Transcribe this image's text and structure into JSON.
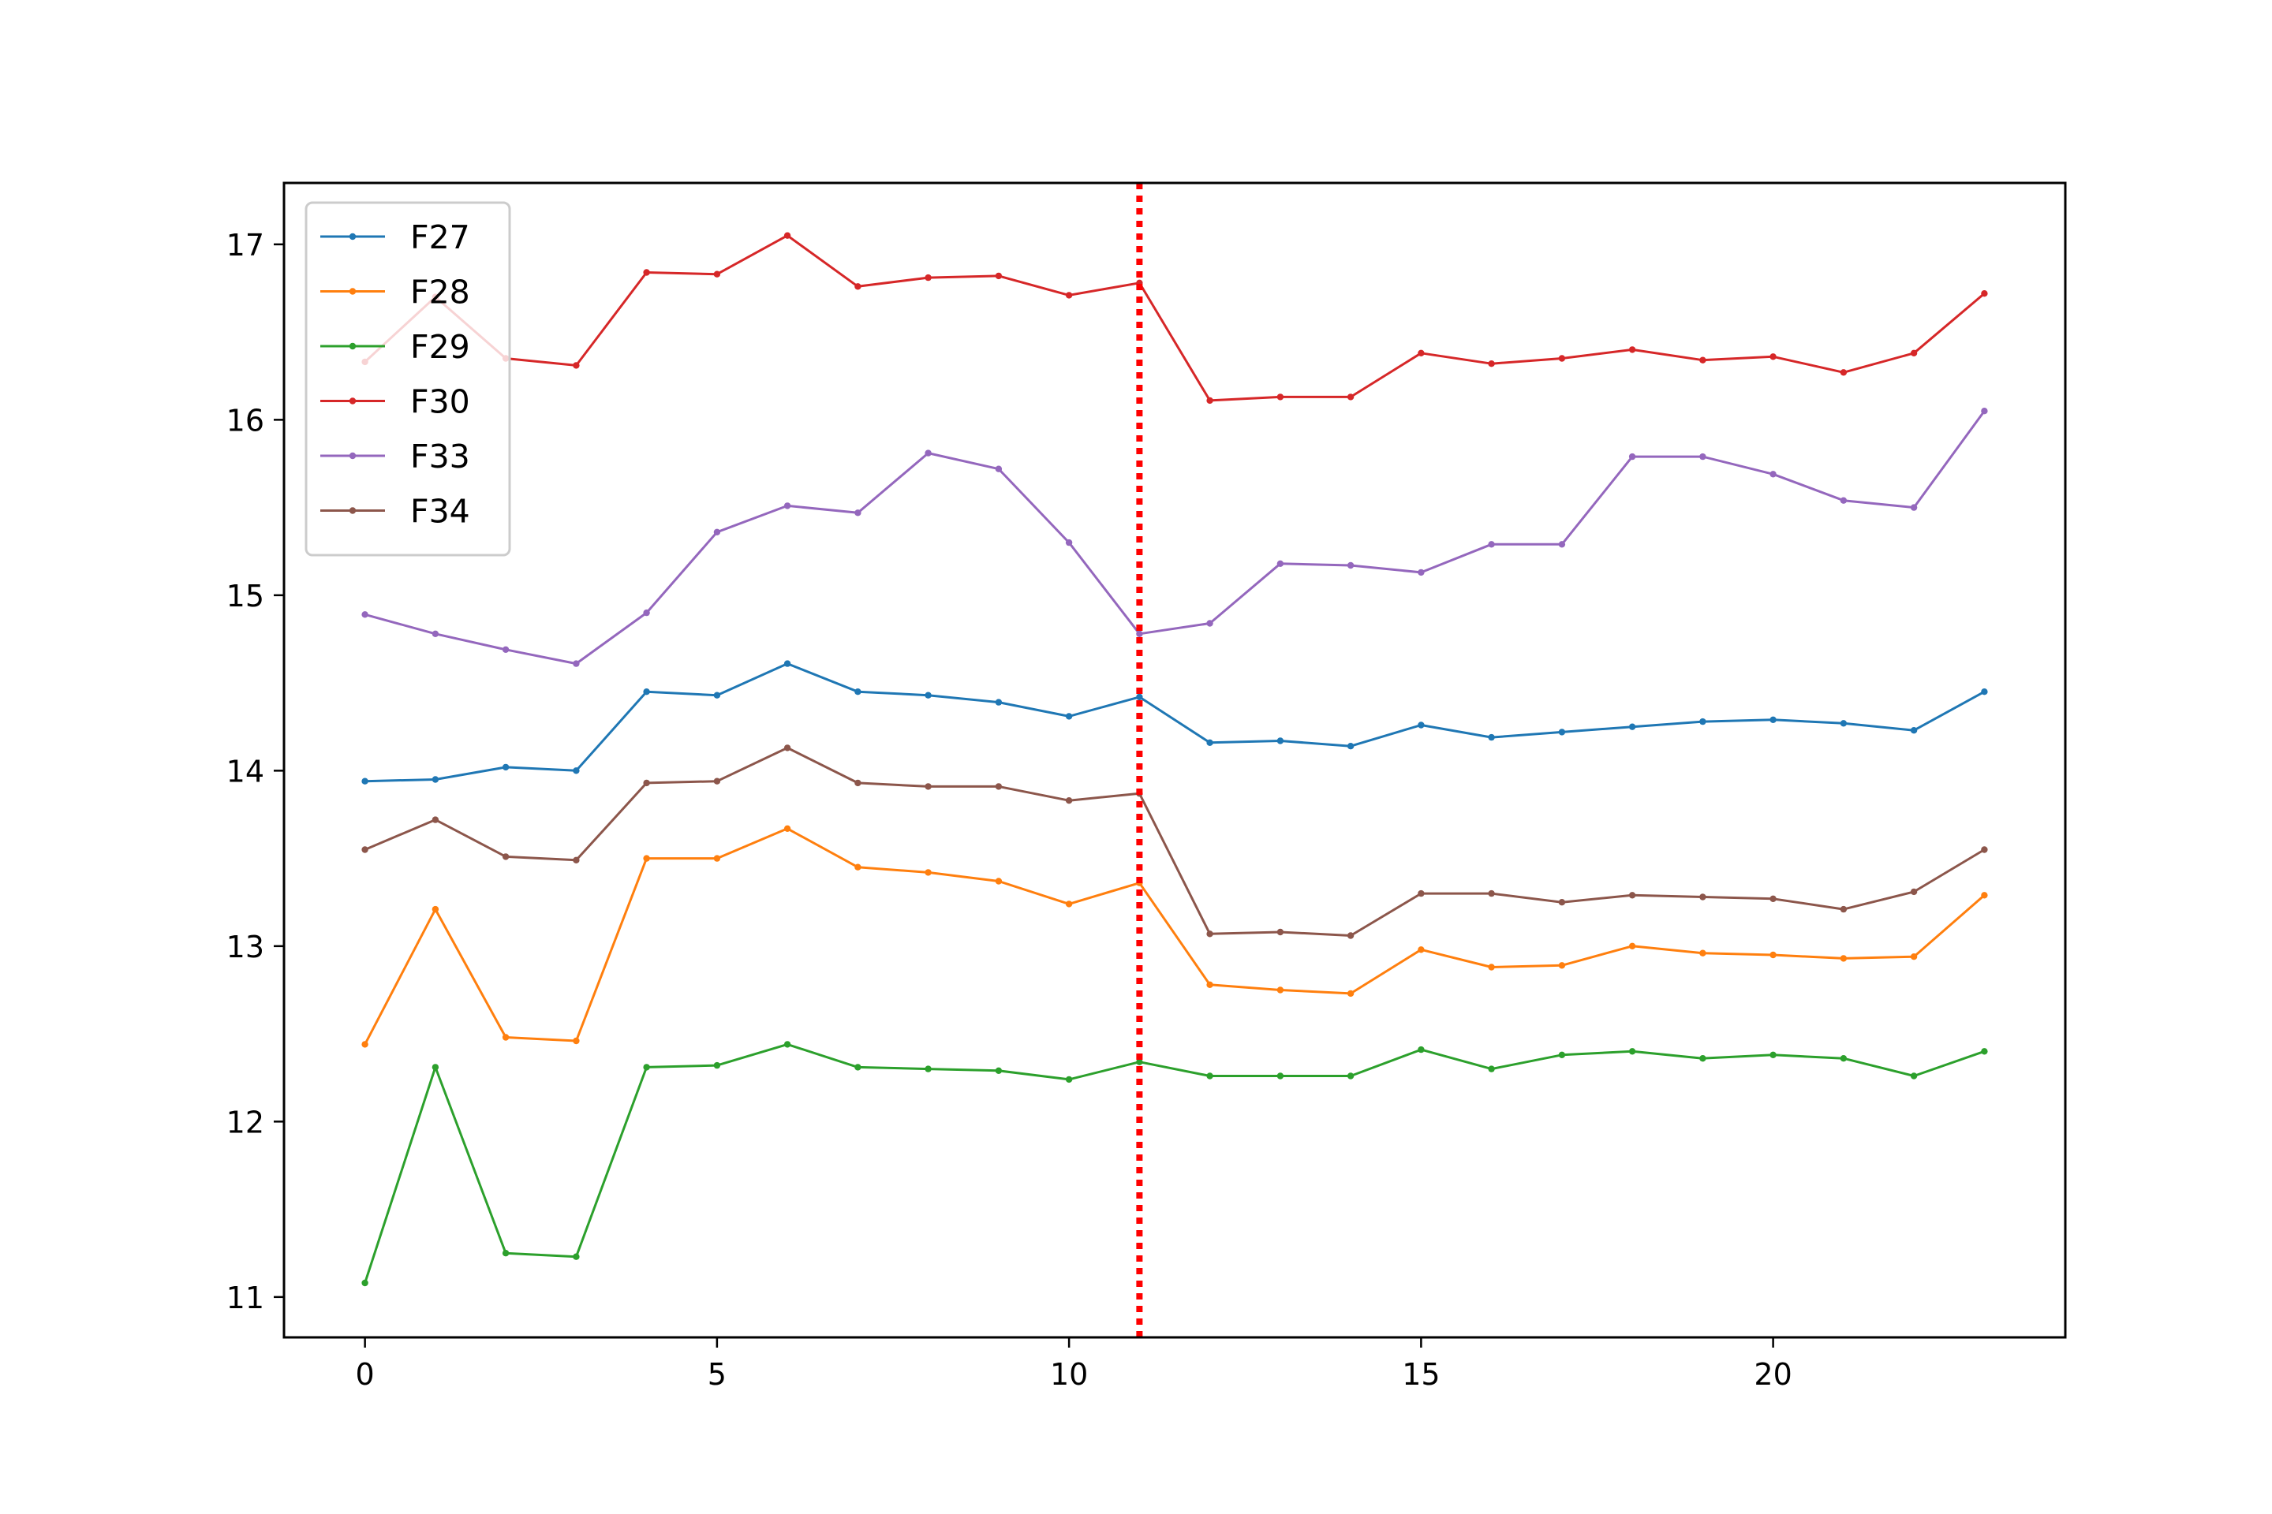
{
  "chart_data": {
    "type": "line",
    "title": "",
    "xlabel": "",
    "ylabel": "",
    "x": [
      0,
      1,
      2,
      3,
      4,
      5,
      6,
      7,
      8,
      9,
      10,
      11,
      12,
      13,
      14,
      15,
      16,
      17,
      18,
      19,
      20,
      21,
      22,
      23
    ],
    "xlim": [
      -1.15,
      24.15
    ],
    "ylim": [
      10.77,
      17.35
    ],
    "xticks": [
      0,
      5,
      10,
      15,
      20
    ],
    "xtick_labels": [
      "0",
      "5",
      "10",
      "15",
      "20"
    ],
    "yticks": [
      11,
      12,
      13,
      14,
      15,
      16,
      17
    ],
    "ytick_labels": [
      "11",
      "12",
      "13",
      "14",
      "15",
      "16",
      "17"
    ],
    "grid": false,
    "legend_position": "top-left",
    "vertical_marker": {
      "x": 11,
      "color": "#ff0000",
      "style": "dotted"
    },
    "series": [
      {
        "name": "F27",
        "color": "#1f77b4",
        "values": [
          13.94,
          13.95,
          14.02,
          14.0,
          14.45,
          14.43,
          14.61,
          14.45,
          14.43,
          14.39,
          14.31,
          14.42,
          14.16,
          14.17,
          14.14,
          14.26,
          14.19,
          14.22,
          14.25,
          14.28,
          14.29,
          14.27,
          14.23,
          14.45
        ]
      },
      {
        "name": "F28",
        "color": "#ff7f0e",
        "values": [
          12.44,
          13.21,
          12.48,
          12.46,
          13.5,
          13.5,
          13.67,
          13.45,
          13.42,
          13.37,
          13.24,
          13.36,
          12.78,
          12.75,
          12.73,
          12.98,
          12.88,
          12.89,
          13.0,
          12.96,
          12.95,
          12.93,
          12.94,
          13.29
        ]
      },
      {
        "name": "F29",
        "color": "#2ca02c",
        "values": [
          11.08,
          12.31,
          11.25,
          11.23,
          12.31,
          12.32,
          12.44,
          12.31,
          12.3,
          12.29,
          12.24,
          12.34,
          12.26,
          12.26,
          12.26,
          12.41,
          12.3,
          12.38,
          12.4,
          12.36,
          12.38,
          12.36,
          12.26,
          12.4
        ]
      },
      {
        "name": "F30",
        "color": "#d62728",
        "values": [
          16.33,
          16.7,
          16.35,
          16.31,
          16.84,
          16.83,
          17.05,
          16.76,
          16.81,
          16.82,
          16.71,
          16.78,
          16.11,
          16.13,
          16.13,
          16.38,
          16.32,
          16.35,
          16.4,
          16.34,
          16.36,
          16.27,
          16.38,
          16.72
        ]
      },
      {
        "name": "F33",
        "color": "#9467bd",
        "values": [
          14.89,
          14.78,
          14.69,
          14.61,
          14.9,
          15.36,
          15.51,
          15.47,
          15.81,
          15.72,
          15.3,
          14.78,
          14.84,
          15.18,
          15.17,
          15.13,
          15.29,
          15.29,
          15.79,
          15.79,
          15.69,
          15.54,
          15.5,
          16.05
        ]
      },
      {
        "name": "F34",
        "color": "#8c564b",
        "values": [
          13.55,
          13.72,
          13.51,
          13.49,
          13.93,
          13.94,
          14.13,
          13.93,
          13.91,
          13.91,
          13.83,
          13.87,
          13.07,
          13.08,
          13.06,
          13.3,
          13.3,
          13.25,
          13.29,
          13.28,
          13.27,
          13.21,
          13.31,
          13.55
        ]
      }
    ]
  }
}
